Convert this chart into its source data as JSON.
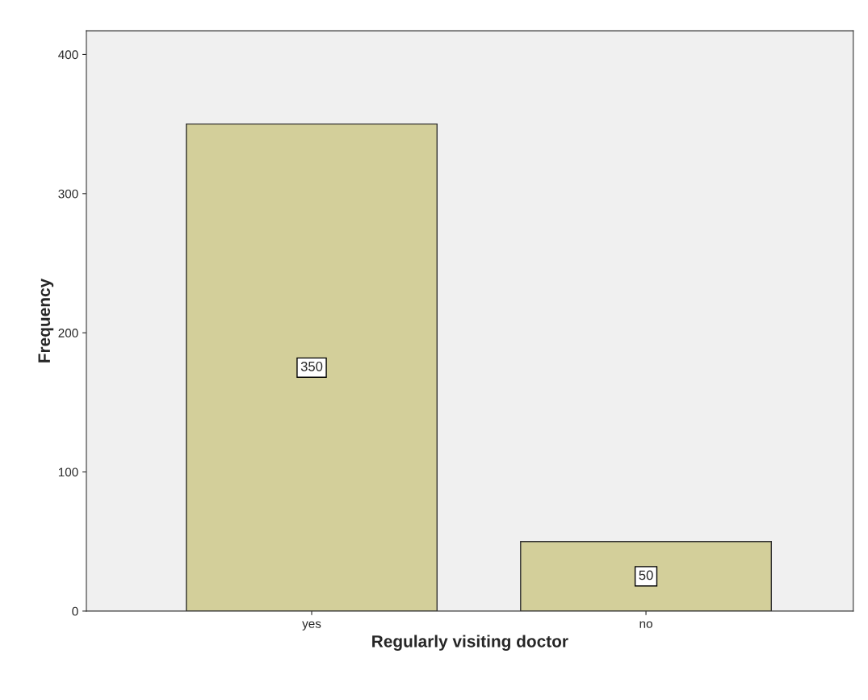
{
  "chart_data": {
    "type": "bar",
    "xlabel": "Regularly visiting doctor",
    "ylabel": "Frequency",
    "categories": [
      "yes",
      "no"
    ],
    "values": [
      350,
      50
    ],
    "color": "#d3cf9a",
    "ylim": [
      0,
      417
    ],
    "yticks": [
      0,
      100,
      200,
      300,
      400
    ],
    "data_labels": true,
    "grid": false
  }
}
